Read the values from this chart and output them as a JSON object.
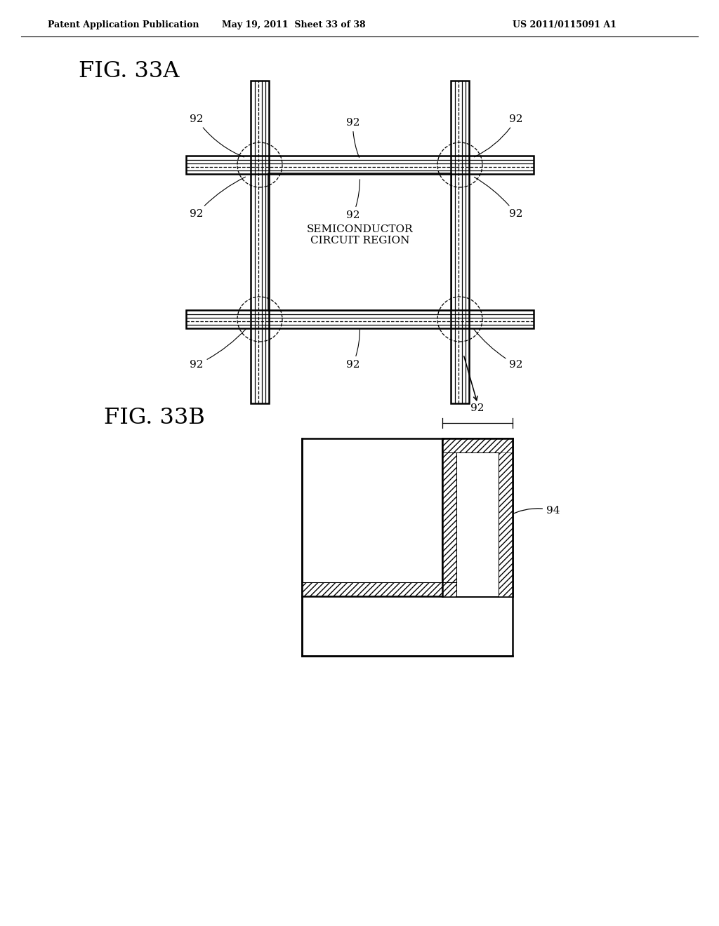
{
  "header_left": "Patent Application Publication",
  "header_center": "May 19, 2011  Sheet 33 of 38",
  "header_right": "US 2011/0115091 A1",
  "fig33a_label": "FIG. 33A",
  "fig33b_label": "FIG. 33B",
  "label_92": "92",
  "label_94": "94",
  "text_semiconductor": "SEMICONDUCTOR\nCIRCUIT REGION",
  "bg_color": "#ffffff",
  "line_color": "#000000"
}
